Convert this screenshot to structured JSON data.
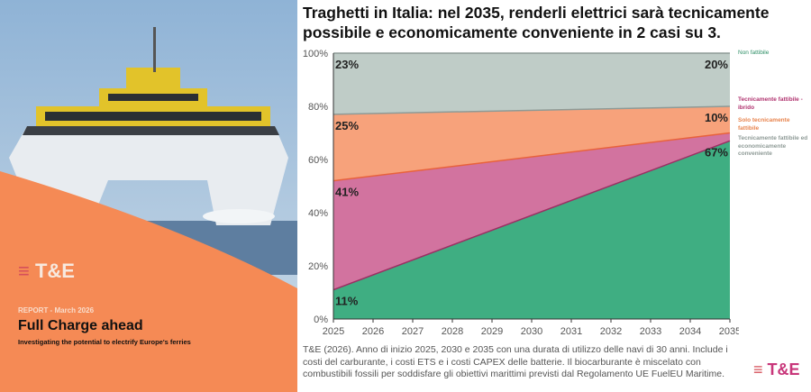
{
  "cover": {
    "logo": "T&E",
    "report_label": "REPORT - March 2026",
    "title": "Full Charge ahead",
    "subtitle": "Investigating the potential to electrify Europe's ferries"
  },
  "title": "Traghetti in Italia: nel 2035, renderli elettrici sarà tecnicamente possibile e economicamente conveniente in 2 casi su 3.",
  "note": "T&E (2026). Anno di inizio 2025, 2030 e 2035 con una durata di utilizzo delle navi di 30 anni. Include i costi del carburante, i costi ETS e i costi CAPEX delle batterie. Il biocarburante è miscelato con combustibili fossili per soddisfare gli obiettivi marittimi previsti dal Regolamento UE FuelEU Maritime.",
  "footer_logo": "T&E",
  "chart_data": {
    "type": "area",
    "stacked": true,
    "x": [
      2025,
      2035
    ],
    "xticks": [
      "2025",
      "2026",
      "2027",
      "2028",
      "2029",
      "2030",
      "2031",
      "2032",
      "2033",
      "2034",
      "2035"
    ],
    "yticks": [
      "0%",
      "20%",
      "40%",
      "60%",
      "80%",
      "100%"
    ],
    "ylim": [
      0,
      100
    ],
    "grid": false,
    "legend_placement": "right",
    "series": [
      {
        "name": "Tecnicamente fattibile ed economicamente conveniente",
        "values": [
          11,
          67
        ],
        "labels": [
          "11%",
          "67%"
        ],
        "color": "#3fae82"
      },
      {
        "name": "Solo tecnicamente fattibile",
        "values": [
          41,
          3
        ],
        "labels": [
          "41%",
          ""
        ],
        "color": "#d2739f",
        "line": "#9b2f63"
      },
      {
        "name": "Tecnicamente fattibile - ibrido",
        "values": [
          25,
          10
        ],
        "labels": [
          "25%",
          "10%"
        ],
        "color": "#f7a27b",
        "line": "#e8623c"
      },
      {
        "name": "Non fattibile",
        "values": [
          23,
          20
        ],
        "labels": [
          "23%",
          "20%"
        ],
        "color": "#bfccc7",
        "line": "#8e9a96"
      }
    ]
  }
}
